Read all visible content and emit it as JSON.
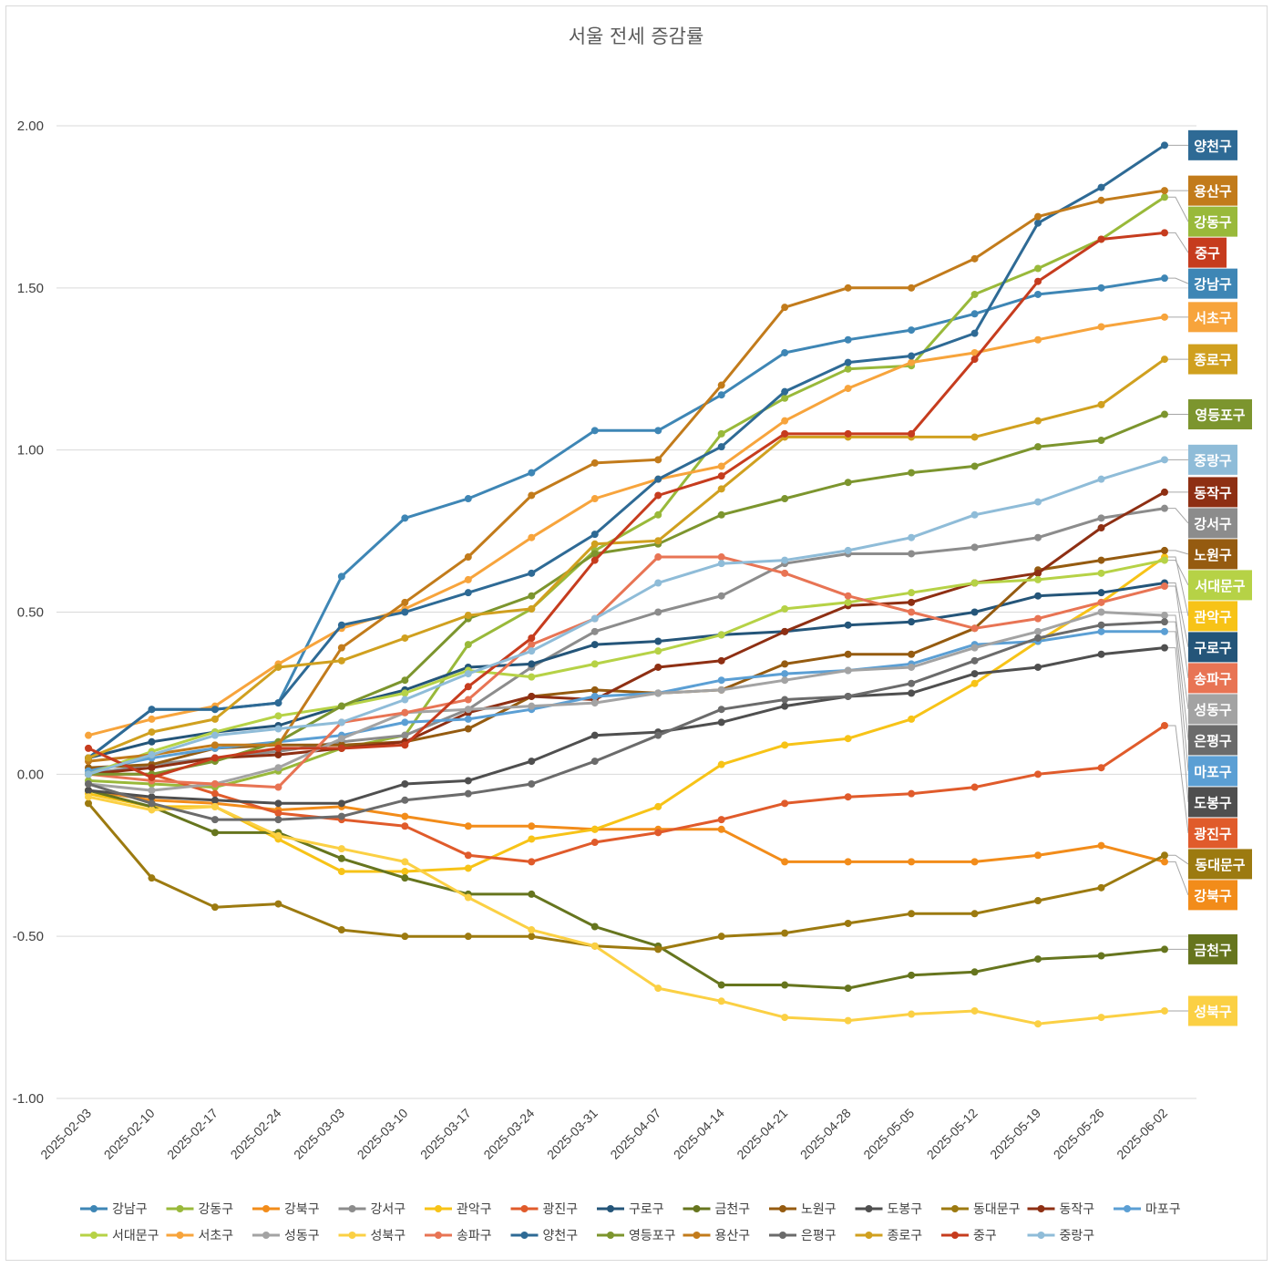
{
  "chart_data": {
    "type": "line",
    "title": "서울 전세 증감률",
    "xlabel": "",
    "ylabel": "",
    "ylim": [
      -1.0,
      2.0
    ],
    "yticks": [
      "2.00",
      "1.50",
      "1.00",
      "0.50",
      "0.00",
      "-0.50",
      "-1.00"
    ],
    "yticks_values": [
      2.0,
      1.5,
      1.0,
      0.5,
      0.0,
      -0.5,
      -1.0
    ],
    "grid": true,
    "legend_position": "bottom",
    "categories": [
      "2025-02-03",
      "2025-02-10",
      "2025-02-17",
      "2025-02-24",
      "2025-03-03",
      "2025-03-10",
      "2025-03-17",
      "2025-03-24",
      "2025-03-31",
      "2025-04-07",
      "2025-04-14",
      "2025-04-21",
      "2025-04-28",
      "2025-05-05",
      "2025-05-12",
      "2025-05-19",
      "2025-05-26",
      "2025-06-02"
    ],
    "series": [
      {
        "name": "강남구",
        "color": "#3e86b5",
        "values": [
          0.05,
          0.2,
          0.2,
          0.22,
          0.61,
          0.79,
          0.85,
          0.93,
          1.06,
          1.06,
          1.17,
          1.3,
          1.34,
          1.37,
          1.42,
          1.48,
          1.5,
          1.53
        ]
      },
      {
        "name": "강동구",
        "color": "#99b93a",
        "values": [
          -0.02,
          -0.03,
          -0.04,
          0.01,
          0.08,
          0.12,
          0.4,
          0.51,
          0.69,
          0.8,
          1.05,
          1.16,
          1.25,
          1.26,
          1.48,
          1.56,
          1.65,
          1.78
        ]
      },
      {
        "name": "강북구",
        "color": "#f28c1a",
        "values": [
          -0.05,
          -0.08,
          -0.09,
          -0.11,
          -0.1,
          -0.13,
          -0.16,
          -0.16,
          -0.17,
          -0.17,
          -0.17,
          -0.27,
          -0.27,
          -0.27,
          -0.27,
          -0.25,
          -0.22,
          -0.27
        ]
      },
      {
        "name": "강서구",
        "color": "#8c8c8c",
        "values": [
          0.0,
          0.03,
          0.05,
          0.07,
          0.1,
          0.12,
          0.2,
          0.33,
          0.44,
          0.5,
          0.55,
          0.65,
          0.68,
          0.68,
          0.7,
          0.73,
          0.79,
          0.82
        ]
      },
      {
        "name": "관악구",
        "color": "#f7c317",
        "values": [
          -0.06,
          -0.1,
          -0.1,
          -0.2,
          -0.3,
          -0.3,
          -0.29,
          -0.2,
          -0.17,
          -0.1,
          0.03,
          0.09,
          0.11,
          0.17,
          0.28,
          0.41,
          0.53,
          0.67
        ]
      },
      {
        "name": "광진구",
        "color": "#e05b2b",
        "values": [
          0.0,
          0.0,
          -0.06,
          -0.12,
          -0.14,
          -0.16,
          -0.25,
          -0.27,
          -0.21,
          -0.18,
          -0.14,
          -0.09,
          -0.07,
          -0.06,
          -0.04,
          0.0,
          0.02,
          0.15
        ]
      },
      {
        "name": "구로구",
        "color": "#245579",
        "values": [
          0.05,
          0.1,
          0.13,
          0.15,
          0.21,
          0.26,
          0.33,
          0.34,
          0.4,
          0.41,
          0.43,
          0.44,
          0.46,
          0.47,
          0.5,
          0.55,
          0.56,
          0.59
        ]
      },
      {
        "name": "금천구",
        "color": "#66751e",
        "values": [
          -0.05,
          -0.1,
          -0.18,
          -0.18,
          -0.26,
          -0.32,
          -0.37,
          -0.37,
          -0.47,
          -0.53,
          -0.65,
          -0.65,
          -0.66,
          -0.62,
          -0.61,
          -0.57,
          -0.56,
          -0.54
        ]
      },
      {
        "name": "노원구",
        "color": "#955b10",
        "values": [
          0.02,
          0.03,
          0.08,
          0.09,
          0.09,
          0.1,
          0.14,
          0.24,
          0.26,
          0.25,
          0.26,
          0.34,
          0.37,
          0.37,
          0.45,
          0.63,
          0.66,
          0.69
        ]
      },
      {
        "name": "도봉구",
        "color": "#4f4f4f",
        "values": [
          -0.05,
          -0.07,
          -0.08,
          -0.09,
          -0.09,
          -0.03,
          -0.02,
          0.04,
          0.12,
          0.13,
          0.16,
          0.21,
          0.24,
          0.25,
          0.31,
          0.33,
          0.37,
          0.39
        ]
      },
      {
        "name": "동대문구",
        "color": "#9c7a10",
        "values": [
          -0.09,
          -0.32,
          -0.41,
          -0.4,
          -0.48,
          -0.5,
          -0.5,
          -0.5,
          -0.53,
          -0.54,
          -0.5,
          -0.49,
          -0.46,
          -0.43,
          -0.43,
          -0.39,
          -0.35,
          -0.25
        ]
      },
      {
        "name": "동작구",
        "color": "#8e2f13",
        "values": [
          0.0,
          0.02,
          0.05,
          0.06,
          0.08,
          0.1,
          0.19,
          0.24,
          0.23,
          0.33,
          0.35,
          0.44,
          0.52,
          0.53,
          0.59,
          0.62,
          0.76,
          0.87
        ]
      },
      {
        "name": "마포구",
        "color": "#5b9fd4",
        "values": [
          0.01,
          0.05,
          0.08,
          0.1,
          0.12,
          0.16,
          0.17,
          0.2,
          0.24,
          0.25,
          0.29,
          0.31,
          0.32,
          0.34,
          0.4,
          0.41,
          0.44,
          0.44
        ]
      },
      {
        "name": "서대문구",
        "color": "#b6d246",
        "values": [
          0.0,
          0.07,
          0.13,
          0.18,
          0.21,
          0.25,
          0.32,
          0.3,
          0.34,
          0.38,
          0.43,
          0.51,
          0.53,
          0.56,
          0.59,
          0.6,
          0.62,
          0.66
        ]
      },
      {
        "name": "서초구",
        "color": "#f7a43c",
        "values": [
          0.12,
          0.17,
          0.21,
          0.34,
          0.45,
          0.51,
          0.6,
          0.73,
          0.85,
          0.91,
          0.95,
          1.09,
          1.19,
          1.27,
          1.3,
          1.34,
          1.38,
          1.41
        ]
      },
      {
        "name": "성동구",
        "color": "#a3a3a3",
        "values": [
          -0.03,
          -0.05,
          -0.03,
          0.02,
          0.11,
          0.19,
          0.2,
          0.21,
          0.22,
          0.25,
          0.26,
          0.29,
          0.32,
          0.33,
          0.39,
          0.44,
          0.5,
          0.49
        ]
      },
      {
        "name": "성북구",
        "color": "#fbd044",
        "values": [
          -0.07,
          -0.11,
          -0.1,
          -0.19,
          -0.23,
          -0.27,
          -0.38,
          -0.48,
          -0.53,
          -0.66,
          -0.7,
          -0.75,
          -0.76,
          -0.74,
          -0.73,
          -0.77,
          -0.75,
          -0.73
        ]
      },
      {
        "name": "송파구",
        "color": "#e87454",
        "values": [
          0.0,
          -0.02,
          -0.03,
          -0.04,
          0.16,
          0.19,
          0.23,
          0.4,
          0.48,
          0.67,
          0.67,
          0.62,
          0.55,
          0.5,
          0.45,
          0.48,
          0.53,
          0.58
        ]
      },
      {
        "name": "양천구",
        "color": "#2e6a95",
        "values": [
          0.05,
          0.2,
          0.2,
          0.22,
          0.46,
          0.5,
          0.56,
          0.62,
          0.74,
          0.91,
          1.01,
          1.18,
          1.27,
          1.29,
          1.36,
          1.7,
          1.81,
          1.94
        ]
      },
      {
        "name": "영등포구",
        "color": "#7c952e",
        "values": [
          0.0,
          0.0,
          0.04,
          0.1,
          0.21,
          0.29,
          0.48,
          0.55,
          0.68,
          0.71,
          0.8,
          0.85,
          0.9,
          0.93,
          0.95,
          1.01,
          1.03,
          1.11
        ]
      },
      {
        "name": "용산구",
        "color": "#c27b1b",
        "values": [
          0.04,
          0.06,
          0.09,
          0.09,
          0.39,
          0.53,
          0.67,
          0.86,
          0.96,
          0.97,
          1.2,
          1.44,
          1.5,
          1.5,
          1.59,
          1.72,
          1.77,
          1.8
        ]
      },
      {
        "name": "은평구",
        "color": "#6b6b6b",
        "values": [
          -0.03,
          -0.09,
          -0.14,
          -0.14,
          -0.13,
          -0.08,
          -0.06,
          -0.03,
          0.04,
          0.12,
          0.2,
          0.23,
          0.24,
          0.28,
          0.35,
          0.42,
          0.46,
          0.47
        ]
      },
      {
        "name": "종로구",
        "color": "#d0a01f",
        "values": [
          0.05,
          0.13,
          0.17,
          0.33,
          0.35,
          0.42,
          0.49,
          0.51,
          0.71,
          0.72,
          0.88,
          1.04,
          1.04,
          1.04,
          1.04,
          1.09,
          1.14,
          1.28
        ]
      },
      {
        "name": "중구",
        "color": "#c63c1e",
        "values": [
          0.08,
          -0.01,
          0.05,
          0.08,
          0.08,
          0.09,
          0.27,
          0.42,
          0.66,
          0.86,
          0.92,
          1.05,
          1.05,
          1.05,
          1.28,
          1.52,
          1.65,
          1.67
        ]
      },
      {
        "name": "중랑구",
        "color": "#8fbcd8",
        "values": [
          0.0,
          0.06,
          0.12,
          0.14,
          0.16,
          0.23,
          0.31,
          0.38,
          0.48,
          0.59,
          0.65,
          0.66,
          0.69,
          0.73,
          0.8,
          0.84,
          0.91,
          0.97
        ]
      }
    ],
    "end_labels": [
      {
        "series": "양천구",
        "value": 1.94
      },
      {
        "series": "용산구",
        "value": 1.8
      },
      {
        "series": "강동구",
        "value": 1.78
      },
      {
        "series": "중구",
        "value": 1.67
      },
      {
        "series": "강남구",
        "value": 1.53
      },
      {
        "series": "서초구",
        "value": 1.41
      },
      {
        "series": "종로구",
        "value": 1.28
      },
      {
        "series": "영등포구",
        "value": 1.11
      },
      {
        "series": "중랑구",
        "value": 0.97
      },
      {
        "series": "동작구",
        "value": 0.87
      },
      {
        "series": "강서구",
        "value": 0.82
      },
      {
        "series": "노원구",
        "value": 0.69
      },
      {
        "series": "서대문구",
        "value": 0.66
      },
      {
        "series": "관악구",
        "value": 0.67
      },
      {
        "series": "구로구",
        "value": 0.59
      },
      {
        "series": "송파구",
        "value": 0.58
      },
      {
        "series": "성동구",
        "value": 0.49
      },
      {
        "series": "은평구",
        "value": 0.47
      },
      {
        "series": "마포구",
        "value": 0.44
      },
      {
        "series": "도봉구",
        "value": 0.39
      },
      {
        "series": "광진구",
        "value": 0.15
      },
      {
        "series": "동대문구",
        "value": -0.25
      },
      {
        "series": "강북구",
        "value": -0.27
      },
      {
        "series": "금천구",
        "value": -0.54
      },
      {
        "series": "성북구",
        "value": -0.73
      }
    ]
  }
}
